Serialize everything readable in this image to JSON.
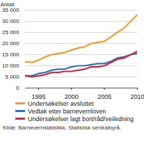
{
  "chart_data": {
    "type": "line",
    "y_label": "Antall",
    "source": "Kilde: Barnevernstatistikk, Statistisk sentralbyrå.",
    "x": [
      1993,
      1994,
      1995,
      1996,
      1997,
      1998,
      1999,
      2000,
      2001,
      2002,
      2003,
      2004,
      2005,
      2006,
      2007,
      2008,
      2009,
      2010
    ],
    "xlim": [
      1993,
      2010
    ],
    "xticks": [
      1995,
      2000,
      2005,
      2010
    ],
    "ylim": [
      0,
      35000
    ],
    "yticks": [
      0,
      {
        "value": 5000,
        "label": "5 000"
      },
      {
        "value": 10000,
        "label": "10 000"
      },
      {
        "value": 15000,
        "label": "15 000"
      },
      {
        "value": 20000,
        "label": "20 000"
      },
      {
        "value": 25000,
        "label": "25 000"
      },
      {
        "value": 30000,
        "label": "30 000"
      },
      {
        "value": 35000,
        "label": "35 000"
      }
    ],
    "grid": true,
    "legend": "bottom",
    "series": [
      {
        "name": "Undersøkelser avsluttet",
        "color": "#f29c2b",
        "values": [
          11800,
          11500,
          12500,
          14000,
          15000,
          15500,
          16000,
          17000,
          18000,
          18500,
          20000,
          20500,
          21000,
          23000,
          25000,
          27000,
          30000,
          33000
        ]
      },
      {
        "name": "Vedtak etter barnevernloven",
        "color": "#2e75b6",
        "values": [
          5500,
          5500,
          6500,
          7000,
          8000,
          8500,
          8500,
          9500,
          10000,
          10000,
          10500,
          11000,
          11000,
          12000,
          13500,
          14000,
          15000,
          15500
        ]
      },
      {
        "name": "Undersøkelser lagt bort/råd/veiledning",
        "color": "#d7263d",
        "values": [
          5500,
          5000,
          5500,
          6000,
          7000,
          7000,
          7500,
          7500,
          8000,
          8500,
          9500,
          9500,
          10000,
          11500,
          13000,
          13500,
          15000,
          16500
        ]
      }
    ]
  }
}
